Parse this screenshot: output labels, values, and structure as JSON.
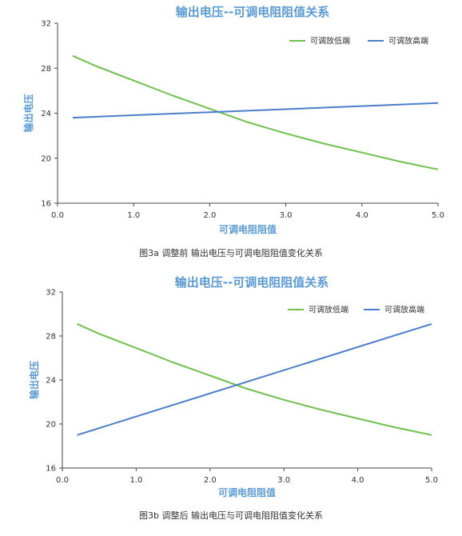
{
  "chart_data": [
    {
      "type": "line",
      "title": "输出电压--可调电阻阻值关系",
      "xlabel": "可调电阻阻值",
      "ylabel": "输出电压",
      "xlim": [
        0,
        5
      ],
      "ylim": [
        16,
        32
      ],
      "xticks": [
        "0.0",
        "1.0",
        "2.0",
        "3.0",
        "4.0",
        "5.0"
      ],
      "yticks": [
        "16",
        "20",
        "24",
        "28",
        "32"
      ],
      "legend": "top-right",
      "grid": false,
      "series": [
        {
          "name": "可调放低端",
          "color": "#70c050",
          "x": [
            0.2,
            0.5,
            1.0,
            1.5,
            2.0,
            2.5,
            3.0,
            3.5,
            4.0,
            4.5,
            5.0
          ],
          "y": [
            29.1,
            28.2,
            26.9,
            25.6,
            24.4,
            23.2,
            22.2,
            21.3,
            20.5,
            19.7,
            19.0
          ]
        },
        {
          "name": "可调放高端",
          "color": "#4a7ec8",
          "x": [
            0.2,
            5.0
          ],
          "y": [
            23.6,
            24.9
          ]
        }
      ],
      "caption": "图3a  调整前  输出电压与可调电阻阻值变化关系"
    },
    {
      "type": "line",
      "title": "输出电压--可调电阻阻值关系",
      "xlabel": "可调电阻阻值",
      "ylabel": "输出电压",
      "xlim": [
        0,
        5
      ],
      "ylim": [
        16,
        32
      ],
      "xticks": [
        "0.0",
        "1.0",
        "2.0",
        "3.0",
        "4.0",
        "5.0"
      ],
      "yticks": [
        "16",
        "20",
        "24",
        "28",
        "32"
      ],
      "legend": "top-right",
      "grid": false,
      "series": [
        {
          "name": "可调放低端",
          "color": "#70c050",
          "x": [
            0.2,
            0.5,
            1.0,
            1.5,
            2.0,
            2.5,
            3.0,
            3.5,
            4.0,
            4.5,
            5.0
          ],
          "y": [
            29.1,
            28.2,
            26.9,
            25.6,
            24.4,
            23.2,
            22.2,
            21.3,
            20.5,
            19.7,
            19.0
          ]
        },
        {
          "name": "可调放高端",
          "color": "#4a7ec8",
          "x": [
            0.2,
            5.0
          ],
          "y": [
            19.0,
            29.1
          ]
        }
      ],
      "caption": "图3b  调整后  输出电压与可调电阻阻值变化关系"
    }
  ]
}
